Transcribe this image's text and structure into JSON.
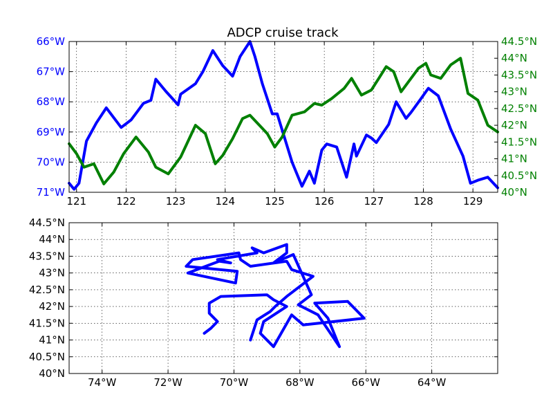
{
  "chart_data": [
    {
      "type": "line",
      "title": "ADCP cruise track",
      "xlabel": "",
      "xlim": [
        120.85,
        129.5
      ],
      "x_ticks": [
        121,
        122,
        123,
        124,
        125,
        126,
        127,
        128,
        129
      ],
      "x_tick_labels": [
        "121",
        "122",
        "123",
        "124",
        "125",
        "126",
        "127",
        "128",
        "129"
      ],
      "grid": true,
      "left_axis": {
        "color": "#0000ff",
        "ylim": [
          -71,
          -66
        ],
        "ticks": [
          -66,
          -67,
          -68,
          -69,
          -70,
          -71
        ],
        "tick_labels": [
          "66°W",
          "67°W",
          "68°W",
          "69°W",
          "70°W",
          "71°W"
        ]
      },
      "right_axis": {
        "color": "#008000",
        "ylim": [
          40,
          44.5
        ],
        "ticks": [
          40,
          40.5,
          41,
          41.5,
          42,
          42.5,
          43,
          43.5,
          44,
          44.5
        ],
        "tick_labels": [
          "40°N",
          "40.5°N",
          "41°N",
          "41.5°N",
          "42°N",
          "42.5°N",
          "43°N",
          "43.5°N",
          "44°N",
          "44.5°N"
        ]
      },
      "series": [
        {
          "axis": "left",
          "color": "#0000ff",
          "x": [
            120.85,
            120.95,
            121.05,
            121.2,
            121.4,
            121.6,
            121.9,
            122.1,
            122.35,
            122.5,
            122.6,
            122.8,
            123.05,
            123.1,
            123.4,
            123.55,
            123.75,
            123.95,
            124.15,
            124.3,
            124.5,
            124.6,
            124.75,
            124.95,
            125.05,
            125.35,
            125.55,
            125.7,
            125.8,
            125.95,
            126.05,
            126.25,
            126.45,
            126.6,
            126.65,
            126.85,
            126.95,
            127.05,
            127.3,
            127.45,
            127.65,
            127.75,
            127.95,
            128.1,
            128.3,
            128.55,
            128.8,
            128.95,
            129.1,
            129.3,
            129.5
          ],
          "y": [
            -70.7,
            -70.9,
            -70.7,
            -69.3,
            -68.7,
            -68.2,
            -68.85,
            -68.6,
            -68.05,
            -67.95,
            -67.25,
            -67.65,
            -68.1,
            -67.75,
            -67.4,
            -67.0,
            -66.3,
            -66.8,
            -67.15,
            -66.5,
            -66.0,
            -66.5,
            -67.4,
            -68.4,
            -68.4,
            -70.0,
            -70.8,
            -70.3,
            -70.7,
            -69.6,
            -69.4,
            -69.5,
            -70.5,
            -69.4,
            -69.8,
            -69.1,
            -69.2,
            -69.35,
            -68.75,
            -68.0,
            -68.55,
            -68.35,
            -67.9,
            -67.55,
            -67.8,
            -68.9,
            -69.8,
            -70.7,
            -70.6,
            -70.5,
            -70.85
          ]
        },
        {
          "axis": "right",
          "color": "#008000",
          "x": [
            120.85,
            121.0,
            121.15,
            121.35,
            121.55,
            121.75,
            121.95,
            122.05,
            122.2,
            122.45,
            122.6,
            122.85,
            123.1,
            123.4,
            123.6,
            123.8,
            123.95,
            124.15,
            124.35,
            124.5,
            124.85,
            125.0,
            125.15,
            125.35,
            125.6,
            125.8,
            125.95,
            126.15,
            126.4,
            126.55,
            126.75,
            126.95,
            127.1,
            127.25,
            127.4,
            127.55,
            127.75,
            127.9,
            128.05,
            128.15,
            128.35,
            128.55,
            128.75,
            128.9,
            129.1,
            129.3,
            129.5
          ],
          "y": [
            41.45,
            41.15,
            40.75,
            40.85,
            40.25,
            40.6,
            41.15,
            41.35,
            41.65,
            41.2,
            40.75,
            40.55,
            41.05,
            42.0,
            41.75,
            40.85,
            41.1,
            41.6,
            42.2,
            42.3,
            41.75,
            41.35,
            41.65,
            42.3,
            42.4,
            42.65,
            42.6,
            42.8,
            43.1,
            43.4,
            42.9,
            43.05,
            43.4,
            43.75,
            43.6,
            43.0,
            43.4,
            43.7,
            43.85,
            43.5,
            43.4,
            43.8,
            44.0,
            42.95,
            42.75,
            42.0,
            41.8
          ]
        }
      ]
    },
    {
      "type": "line",
      "title": "",
      "xlabel": "",
      "ylabel": "",
      "xlim": [
        -75,
        -62
      ],
      "ylim": [
        40,
        44.5
      ],
      "x_ticks": [
        -74,
        -72,
        -70,
        -68,
        -66,
        -64
      ],
      "x_tick_labels": [
        "74°W",
        "72°W",
        "70°W",
        "68°W",
        "66°W",
        "64°W"
      ],
      "y_ticks": [
        40,
        40.5,
        41,
        41.5,
        42,
        42.5,
        43,
        43.5,
        44,
        44.5
      ],
      "y_tick_labels": [
        "40°N",
        "40.5°N",
        "41°N",
        "41.5°N",
        "42°N",
        "42.5°N",
        "43°N",
        "43.5°N",
        "44°N",
        "44.5°N"
      ],
      "grid": true,
      "series": [
        {
          "color": "#0000ff",
          "x": [
            -70.9,
            -70.7,
            -70.5,
            -70.75,
            -70.75,
            -70.4,
            -69.0,
            -68.8,
            -68.4,
            -69.1,
            -69.2,
            -68.8,
            -68.25,
            -67.9,
            -66.05,
            -66.55,
            -67.55,
            -67.15,
            -66.8,
            -67.45,
            -68.05,
            -67.65,
            -68.2,
            -68.8,
            -68.4,
            -68.4,
            -69.1,
            -69.45,
            -69.3,
            -70.5,
            -70.1,
            -70.45,
            -71.4,
            -69.95,
            -69.9,
            -71.45,
            -71.25,
            -69.85,
            -69.8,
            -69.5,
            -68.4,
            -68.25,
            -67.6,
            -68.2,
            -68.4,
            -68.75,
            -68.9,
            -69.3,
            -69.4,
            -69.5
          ],
          "y": [
            41.2,
            41.35,
            41.55,
            41.8,
            42.1,
            42.3,
            42.35,
            42.2,
            42.0,
            41.55,
            41.2,
            40.8,
            41.75,
            41.45,
            41.65,
            42.15,
            42.1,
            41.65,
            40.8,
            41.75,
            42.05,
            42.35,
            43.55,
            43.3,
            43.6,
            43.85,
            43.6,
            43.75,
            43.6,
            43.4,
            43.3,
            43.35,
            43.0,
            42.7,
            43.05,
            43.2,
            43.4,
            43.6,
            43.4,
            43.2,
            43.35,
            43.1,
            42.9,
            42.45,
            42.3,
            42.0,
            41.85,
            41.6,
            41.3,
            41.0
          ]
        }
      ]
    }
  ]
}
